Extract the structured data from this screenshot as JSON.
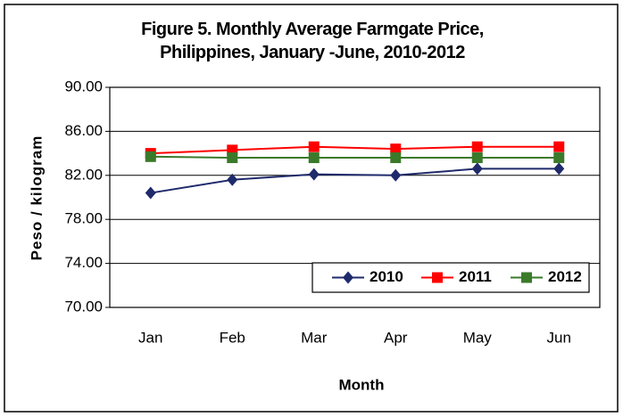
{
  "chart_data": {
    "type": "line",
    "title": "Figure 5. Monthly Average Farmgate Price, Philippines, January -June, 2010-2012",
    "x_label": "Month",
    "y_label": "Peso / kilogram",
    "categories": [
      "Jan",
      "Feb",
      "Mar",
      "Apr",
      "May",
      "Jun"
    ],
    "series": [
      {
        "name": "2010",
        "color": "#1f2a6b",
        "marker": "diamond",
        "values": [
          80.4,
          81.6,
          82.1,
          82.0,
          82.6,
          82.6
        ]
      },
      {
        "name": "2011",
        "color": "#ff0000",
        "marker": "square",
        "values": [
          84.0,
          84.3,
          84.6,
          84.4,
          84.6,
          84.6
        ]
      },
      {
        "name": "2012",
        "color": "#3a7a2a",
        "marker": "square",
        "values": [
          83.7,
          83.6,
          83.6,
          83.6,
          83.6,
          83.6
        ]
      }
    ],
    "ylim": [
      70,
      90
    ],
    "yticks": [
      {
        "value": 70,
        "label": "70.00"
      },
      {
        "value": 74,
        "label": "74.00"
      },
      {
        "value": 78,
        "label": "78.00"
      },
      {
        "value": 82,
        "label": "82.00"
      },
      {
        "value": 86,
        "label": "86.00"
      },
      {
        "value": 90,
        "label": "90.00"
      }
    ],
    "grid": true,
    "legend": "lower right"
  }
}
